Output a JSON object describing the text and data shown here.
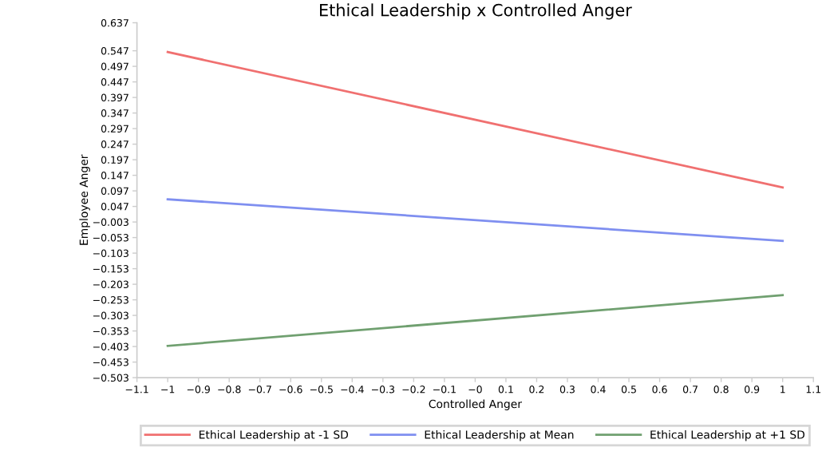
{
  "chart_data": {
    "type": "line",
    "title": "Ethical Leadership x Controlled Anger",
    "xlabel": "Controlled Anger",
    "ylabel": "Employee Anger",
    "x": [
      -1,
      1
    ],
    "series": [
      {
        "name": "Ethical Leadership at -1 SD",
        "color": "#f07070",
        "values": [
          0.543,
          0.108
        ]
      },
      {
        "name": "Ethical Leadership at Mean",
        "color": "#7f8ff0",
        "values": [
          0.07,
          -0.064
        ]
      },
      {
        "name": "Ethical Leadership at +1 SD",
        "color": "#70a070",
        "values": [
          -0.401,
          -0.238
        ]
      }
    ],
    "xlim": [
      -1.1,
      1.1
    ],
    "xticks": [
      {
        "value": -1.1,
        "label": "−1.1"
      },
      {
        "value": -1,
        "label": "−1"
      },
      {
        "value": -0.9,
        "label": "−0.9"
      },
      {
        "value": -0.8,
        "label": "−0.8"
      },
      {
        "value": -0.7,
        "label": "−0.7"
      },
      {
        "value": -0.6,
        "label": "−0.6"
      },
      {
        "value": -0.5,
        "label": "−0.5"
      },
      {
        "value": -0.4,
        "label": "−0.4"
      },
      {
        "value": -0.3,
        "label": "−0.3"
      },
      {
        "value": -0.2,
        "label": "−0.2"
      },
      {
        "value": -0.1,
        "label": "−0.1"
      },
      {
        "value": 0,
        "label": "−0"
      },
      0.1,
      0.2,
      0.3,
      0.4,
      0.5,
      0.6,
      0.7,
      0.8,
      0.9,
      1,
      1.1
    ],
    "ylim": [
      -0.503,
      0.637
    ],
    "yticks": [
      0.637,
      0.547,
      0.497,
      0.447,
      0.397,
      0.347,
      0.297,
      0.247,
      0.197,
      0.147,
      0.097,
      0.047,
      {
        "value": -0.003,
        "label": "−0.003"
      },
      {
        "value": -0.053,
        "label": "−0.053"
      },
      {
        "value": -0.103,
        "label": "−0.103"
      },
      {
        "value": -0.153,
        "label": "−0.153"
      },
      {
        "value": -0.203,
        "label": "−0.203"
      },
      {
        "value": -0.253,
        "label": "−0.253"
      },
      {
        "value": -0.303,
        "label": "−0.303"
      },
      {
        "value": -0.353,
        "label": "−0.353"
      },
      {
        "value": -0.403,
        "label": "−0.403"
      },
      {
        "value": -0.453,
        "label": "−0.453"
      },
      {
        "value": -0.503,
        "label": "−0.503"
      }
    ],
    "grid": false,
    "legend": "bottom",
    "marker": "none",
    "line_style": "solid"
  }
}
